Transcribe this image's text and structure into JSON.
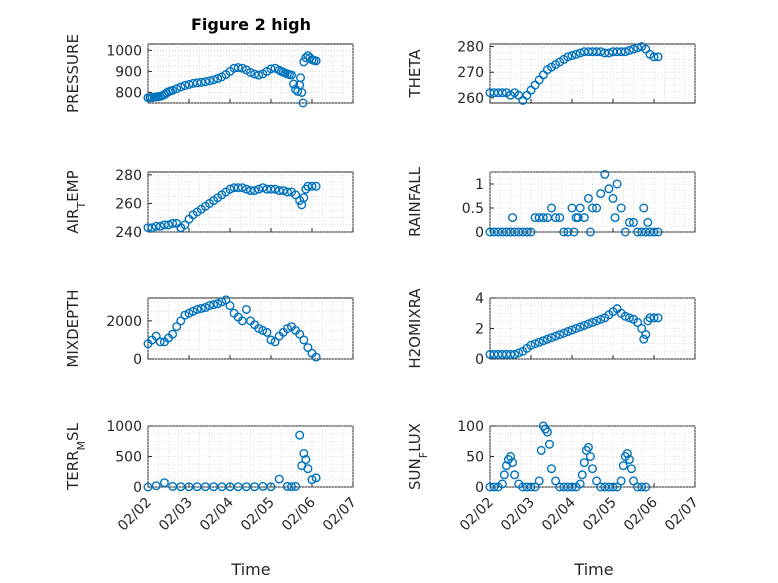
{
  "title": "Figure 2 high",
  "chart_data": [
    {
      "type": "scatter",
      "ylabel": "PRESSURE",
      "ylim": [
        750,
        1030
      ],
      "yticks": [
        800,
        900,
        1000
      ],
      "xlim": [
        0,
        4.92
      ],
      "grid": true,
      "x": [
        0.0,
        0.05,
        0.1,
        0.15,
        0.2,
        0.25,
        0.3,
        0.35,
        0.4,
        0.45,
        0.5,
        0.55,
        0.6,
        0.7,
        0.8,
        0.9,
        1.0,
        1.1,
        1.2,
        1.3,
        1.4,
        1.5,
        1.6,
        1.7,
        1.8,
        1.9,
        2.0,
        2.1,
        2.2,
        2.3,
        2.4,
        2.5,
        2.6,
        2.7,
        2.8,
        2.9,
        3.0,
        3.1,
        3.2,
        3.25,
        3.3,
        3.35,
        3.4,
        3.45,
        3.5,
        3.55,
        3.6,
        3.65,
        3.7,
        3.72,
        3.75,
        3.78,
        3.8,
        3.85,
        3.9,
        3.95,
        4.0,
        4.05,
        4.1
      ],
      "y": [
        775,
        775,
        776,
        778,
        779,
        780,
        782,
        785,
        790,
        797,
        803,
        807,
        810,
        818,
        826,
        833,
        838,
        843,
        846,
        848,
        851,
        855,
        860,
        866,
        874,
        885,
        900,
        915,
        918,
        915,
        907,
        895,
        887,
        882,
        888,
        900,
        912,
        915,
        906,
        900,
        896,
        892,
        888,
        885,
        883,
        840,
        815,
        805,
        835,
        870,
        800,
        750,
        945,
        965,
        975,
        965,
        955,
        952,
        950
      ]
    },
    {
      "type": "scatter",
      "ylabel": "THETA",
      "ylim": [
        258,
        281
      ],
      "yticks": [
        260,
        270,
        280
      ],
      "xlim": [
        0,
        4.92
      ],
      "grid": true,
      "x": [
        0.0,
        0.1,
        0.2,
        0.3,
        0.4,
        0.5,
        0.6,
        0.7,
        0.8,
        0.9,
        1.0,
        1.1,
        1.2,
        1.3,
        1.4,
        1.5,
        1.6,
        1.7,
        1.8,
        1.9,
        2.0,
        2.1,
        2.2,
        2.3,
        2.4,
        2.5,
        2.6,
        2.7,
        2.8,
        2.9,
        3.0,
        3.1,
        3.2,
        3.3,
        3.4,
        3.5,
        3.6,
        3.7,
        3.8,
        3.9,
        4.0,
        4.1
      ],
      "y": [
        262,
        262,
        262,
        262,
        262,
        261,
        262,
        261,
        259,
        261,
        263,
        265,
        267,
        269,
        271,
        272,
        273,
        274,
        275,
        276,
        276.5,
        277,
        277.5,
        278,
        278,
        278,
        278,
        278,
        277.5,
        277.5,
        278,
        278,
        278,
        278,
        278.5,
        279,
        279.5,
        280,
        279,
        277,
        276,
        276
      ]
    },
    {
      "type": "scatter",
      "ylabel": "AIR_TEMP",
      "ylim": [
        240,
        282
      ],
      "yticks": [
        240,
        260,
        280
      ],
      "xlim": [
        0,
        4.92
      ],
      "grid": true,
      "x": [
        0.0,
        0.1,
        0.2,
        0.3,
        0.4,
        0.5,
        0.6,
        0.7,
        0.8,
        0.9,
        1.0,
        1.1,
        1.2,
        1.3,
        1.4,
        1.5,
        1.6,
        1.7,
        1.8,
        1.9,
        2.0,
        2.1,
        2.2,
        2.3,
        2.4,
        2.5,
        2.6,
        2.7,
        2.8,
        2.9,
        3.0,
        3.1,
        3.2,
        3.3,
        3.4,
        3.5,
        3.6,
        3.7,
        3.75,
        3.8,
        3.85,
        3.9,
        4.0,
        4.1
      ],
      "y": [
        243,
        243,
        244,
        244,
        245,
        245,
        246,
        246,
        243,
        245,
        249,
        252,
        254,
        256,
        258,
        260,
        262,
        264,
        266,
        268,
        270,
        271,
        271,
        271,
        270,
        269,
        269,
        270,
        271,
        270,
        270,
        270,
        269,
        269,
        268,
        268,
        266,
        262,
        259,
        264,
        270,
        272,
        272,
        272
      ]
    },
    {
      "type": "scatter",
      "ylabel": "RAINFALL",
      "ylim": [
        0,
        1.25
      ],
      "yticks": [
        0,
        0.5,
        1
      ],
      "xlim": [
        0,
        4.92
      ],
      "grid": true,
      "x": [
        0.0,
        0.1,
        0.2,
        0.3,
        0.4,
        0.5,
        0.55,
        0.6,
        0.7,
        0.8,
        0.9,
        1.0,
        1.1,
        1.2,
        1.3,
        1.4,
        1.5,
        1.6,
        1.7,
        1.8,
        1.9,
        2.0,
        2.05,
        2.1,
        2.15,
        2.2,
        2.3,
        2.4,
        2.45,
        2.5,
        2.6,
        2.7,
        2.8,
        2.9,
        3.0,
        3.05,
        3.1,
        3.2,
        3.3,
        3.4,
        3.5,
        3.6,
        3.7,
        3.75,
        3.8,
        3.85,
        3.9,
        4.0,
        4.1
      ],
      "y": [
        0,
        0,
        0,
        0,
        0,
        0,
        0.3,
        0,
        0,
        0,
        0,
        0,
        0.3,
        0.3,
        0.3,
        0.3,
        0.5,
        0.3,
        0.3,
        0,
        0,
        0.5,
        0,
        0.3,
        0.3,
        0.5,
        0.3,
        0.7,
        0,
        0.5,
        0.5,
        0.8,
        1.2,
        0.9,
        0.7,
        0.3,
        1.0,
        0.5,
        0,
        0.2,
        0.2,
        0,
        0,
        0.5,
        0,
        0.2,
        0,
        0,
        0
      ]
    },
    {
      "type": "scatter",
      "ylabel": "MIXDEPTH",
      "ylim": [
        0,
        3200
      ],
      "yticks": [
        0,
        2000
      ],
      "xlim": [
        0,
        4.92
      ],
      "grid": true,
      "x": [
        0.0,
        0.1,
        0.2,
        0.3,
        0.4,
        0.5,
        0.6,
        0.7,
        0.8,
        0.9,
        1.0,
        1.1,
        1.2,
        1.3,
        1.4,
        1.5,
        1.6,
        1.7,
        1.8,
        1.9,
        2.0,
        2.1,
        2.2,
        2.3,
        2.4,
        2.5,
        2.6,
        2.7,
        2.8,
        2.9,
        3.0,
        3.1,
        3.2,
        3.3,
        3.4,
        3.5,
        3.6,
        3.7,
        3.8,
        3.9,
        4.0,
        4.1
      ],
      "y": [
        800,
        1000,
        1200,
        900,
        900,
        1100,
        1300,
        1700,
        2000,
        2300,
        2400,
        2500,
        2600,
        2650,
        2700,
        2800,
        2850,
        2900,
        3000,
        3100,
        2800,
        2400,
        2200,
        2000,
        2600,
        2000,
        1800,
        1600,
        1500,
        1400,
        1000,
        900,
        1200,
        1400,
        1600,
        1700,
        1500,
        1300,
        1000,
        600,
        300,
        100
      ]
    },
    {
      "type": "scatter",
      "ylabel": "H2OMIXRA",
      "ylim": [
        0,
        4
      ],
      "yticks": [
        0,
        2,
        4
      ],
      "xlim": [
        0,
        4.92
      ],
      "grid": true,
      "x": [
        0.0,
        0.1,
        0.2,
        0.3,
        0.4,
        0.5,
        0.6,
        0.7,
        0.8,
        0.9,
        1.0,
        1.1,
        1.2,
        1.3,
        1.4,
        1.5,
        1.6,
        1.7,
        1.8,
        1.9,
        2.0,
        2.1,
        2.2,
        2.3,
        2.4,
        2.5,
        2.6,
        2.7,
        2.8,
        2.9,
        3.0,
        3.1,
        3.2,
        3.3,
        3.4,
        3.5,
        3.6,
        3.7,
        3.75,
        3.8,
        3.85,
        3.9,
        4.0,
        4.1
      ],
      "y": [
        0.3,
        0.3,
        0.3,
        0.3,
        0.3,
        0.3,
        0.3,
        0.4,
        0.5,
        0.7,
        0.9,
        1.0,
        1.1,
        1.2,
        1.3,
        1.4,
        1.5,
        1.6,
        1.7,
        1.8,
        1.9,
        2.0,
        2.1,
        2.2,
        2.3,
        2.4,
        2.5,
        2.6,
        2.7,
        2.9,
        3.1,
        3.3,
        3.0,
        2.8,
        2.7,
        2.6,
        2.4,
        2.0,
        1.3,
        1.6,
        2.5,
        2.7,
        2.7,
        2.7
      ]
    },
    {
      "type": "scatter",
      "ylabel": "TERR_MSL",
      "ylim": [
        0,
        1000
      ],
      "yticks": [
        0,
        500,
        1000
      ],
      "xlim": [
        0,
        4.92
      ],
      "grid": true,
      "x": [
        0.0,
        0.2,
        0.4,
        0.6,
        0.8,
        1.0,
        1.2,
        1.4,
        1.6,
        1.8,
        2.0,
        2.2,
        2.4,
        2.6,
        2.8,
        3.0,
        3.2,
        3.4,
        3.5,
        3.6,
        3.7,
        3.75,
        3.8,
        3.85,
        3.9,
        4.0,
        4.1
      ],
      "y": [
        0,
        20,
        70,
        10,
        5,
        5,
        5,
        5,
        5,
        5,
        5,
        5,
        5,
        5,
        10,
        5,
        130,
        10,
        5,
        10,
        850,
        350,
        550,
        450,
        300,
        120,
        150
      ]
    },
    {
      "type": "scatter",
      "ylabel": "SUN_FLUX",
      "ylim": [
        0,
        100
      ],
      "yticks": [
        0,
        50,
        100
      ],
      "xlim": [
        0,
        4.92
      ],
      "grid": true,
      "x": [
        0.0,
        0.1,
        0.2,
        0.3,
        0.35,
        0.4,
        0.45,
        0.5,
        0.55,
        0.6,
        0.7,
        0.8,
        0.9,
        1.0,
        1.1,
        1.2,
        1.25,
        1.3,
        1.35,
        1.4,
        1.45,
        1.5,
        1.6,
        1.7,
        1.8,
        1.9,
        2.0,
        2.1,
        2.2,
        2.25,
        2.3,
        2.35,
        2.4,
        2.45,
        2.5,
        2.6,
        2.7,
        2.8,
        2.9,
        3.0,
        3.1,
        3.2,
        3.25,
        3.3,
        3.35,
        3.4,
        3.45,
        3.5,
        3.6,
        3.7,
        3.8
      ],
      "y": [
        0,
        0,
        0,
        5,
        20,
        35,
        45,
        50,
        40,
        20,
        5,
        0,
        0,
        0,
        0,
        10,
        60,
        100,
        95,
        90,
        70,
        30,
        10,
        0,
        0,
        0,
        0,
        0,
        5,
        20,
        40,
        60,
        65,
        50,
        30,
        10,
        0,
        0,
        0,
        0,
        0,
        10,
        35,
        50,
        55,
        45,
        30,
        10,
        0,
        0,
        0
      ]
    }
  ],
  "xticks": [
    "02/02",
    "02/03",
    "02/04",
    "02/05",
    "02/06",
    "02/07"
  ],
  "xlabel": "Time",
  "colors": {
    "marker": "#0072BD",
    "axis": "#262626",
    "grid": "#c8c8c8"
  }
}
